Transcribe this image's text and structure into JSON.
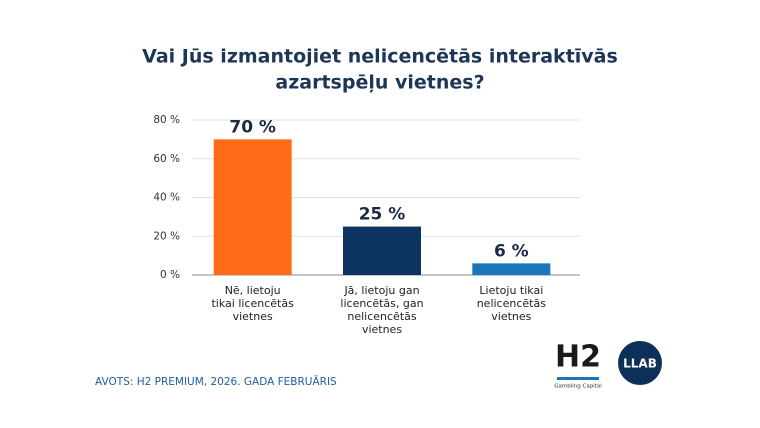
{
  "chart_data": {
    "type": "bar",
    "title": [
      "Vai Jūs izmantojiet nelicencētās interaktīvās",
      "azartspēļu vietnes?"
    ],
    "categories": [
      [
        "Nē, lietoju",
        "tikai licencētās",
        "vietnes"
      ],
      [
        "Jā, lietoju gan",
        "licencētās, gan",
        "nelicencētās",
        "vietnes"
      ],
      [
        "Lietoju tikai",
        "nelicencētās",
        "vietnes"
      ]
    ],
    "values": [
      70,
      25,
      6
    ],
    "value_labels": [
      "70 %",
      "25 %",
      "6 %"
    ],
    "colors": [
      "#ff6b17",
      "#0d3461",
      "#1b75bb"
    ],
    "ylim": [
      0,
      80
    ],
    "yticks": [
      {
        "value": 0,
        "label": "0 %"
      },
      {
        "value": 20,
        "label": "20 %"
      },
      {
        "value": 40,
        "label": "40 %"
      },
      {
        "value": 60,
        "label": "60 %"
      },
      {
        "value": 80,
        "label": "80 %"
      }
    ],
    "grid": true
  },
  "footer": {
    "source": "AVOTS: H2 PREMIUM, 2026. GADA FEBRUĀRIS",
    "logo_h2": "H2",
    "logo_h2_sub": "Gambling Capital",
    "logo_llab": "LLAB"
  }
}
